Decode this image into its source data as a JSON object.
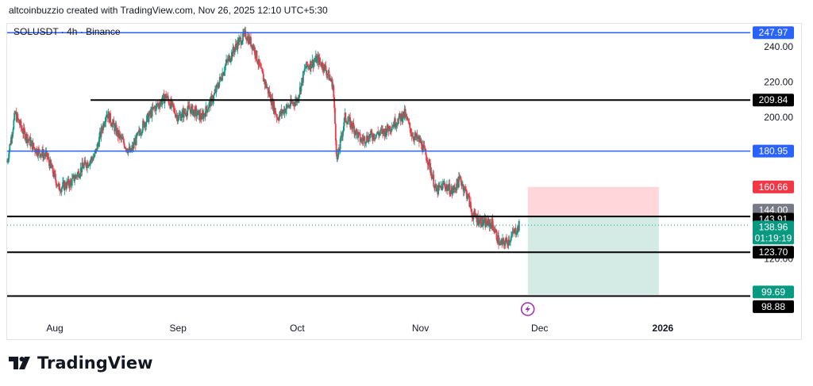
{
  "header": {
    "attribution": "altcoinbuzzio created with TradingView.com, Nov 26, 2025 12:10 UTC+5:30"
  },
  "branding": {
    "name": "TradingView",
    "logo_icon": "tradingview-logo-icon"
  },
  "colors": {
    "blue_line": "#2962ff",
    "black_line": "#000000",
    "up": "#089981",
    "down": "#f23645",
    "stop_zone": "#ffcdd2",
    "target_zone": "#c8e6dd",
    "last_price": "#089981",
    "lightning": "#9c27b0"
  },
  "chart_data": {
    "type": "candlestick",
    "symbol_label": "SOLUSDT · 4h · Binance",
    "ylim": [
      87,
      253
    ],
    "y_ticks": [
      "240.00",
      "220.00",
      "200.00",
      "120.00"
    ],
    "y_tick_values": [
      240,
      220,
      200,
      120
    ],
    "x_ticks": [
      "Aug",
      "Sep",
      "Oct",
      "Nov",
      "Dec",
      "2026"
    ],
    "x_tick_dates": [
      "2025-08-01",
      "2025-09-01",
      "2025-10-01",
      "2025-11-01",
      "2025-12-01",
      "2026-01-01"
    ],
    "x_range": [
      "2025-07-20",
      "2026-01-23"
    ],
    "price_path": [
      [
        "2025-07-20",
        175
      ],
      [
        "2025-07-22",
        202
      ],
      [
        "2025-07-24",
        192
      ],
      [
        "2025-07-27",
        182
      ],
      [
        "2025-07-30",
        178
      ],
      [
        "2025-08-02",
        160
      ],
      [
        "2025-08-05",
        163
      ],
      [
        "2025-08-08",
        172
      ],
      [
        "2025-08-11",
        178
      ],
      [
        "2025-08-14",
        203
      ],
      [
        "2025-08-17",
        190
      ],
      [
        "2025-08-20",
        180
      ],
      [
        "2025-08-23",
        195
      ],
      [
        "2025-08-26",
        205
      ],
      [
        "2025-08-29",
        212
      ],
      [
        "2025-09-01",
        200
      ],
      [
        "2025-09-04",
        205
      ],
      [
        "2025-09-07",
        200
      ],
      [
        "2025-09-10",
        212
      ],
      [
        "2025-09-13",
        230
      ],
      [
        "2025-09-16",
        242
      ],
      [
        "2025-09-18",
        247
      ],
      [
        "2025-09-20",
        240
      ],
      [
        "2025-09-22",
        225
      ],
      [
        "2025-09-24",
        213
      ],
      [
        "2025-09-26",
        200
      ],
      [
        "2025-09-28",
        205
      ],
      [
        "2025-10-01",
        210
      ],
      [
        "2025-10-03",
        228
      ],
      [
        "2025-10-06",
        233
      ],
      [
        "2025-10-08",
        228
      ],
      [
        "2025-10-10",
        218
      ],
      [
        "2025-10-11",
        175
      ],
      [
        "2025-10-13",
        200
      ],
      [
        "2025-10-15",
        195
      ],
      [
        "2025-10-17",
        187
      ],
      [
        "2025-10-20",
        190
      ],
      [
        "2025-10-23",
        192
      ],
      [
        "2025-10-26",
        198
      ],
      [
        "2025-10-28",
        202
      ],
      [
        "2025-10-30",
        190
      ],
      [
        "2025-11-01",
        186
      ],
      [
        "2025-11-03",
        175
      ],
      [
        "2025-11-05",
        158
      ],
      [
        "2025-11-07",
        162
      ],
      [
        "2025-11-09",
        158
      ],
      [
        "2025-11-11",
        165
      ],
      [
        "2025-11-13",
        155
      ],
      [
        "2025-11-14",
        145
      ],
      [
        "2025-11-17",
        140
      ],
      [
        "2025-11-19",
        140
      ],
      [
        "2025-11-21",
        128
      ],
      [
        "2025-11-23",
        130
      ],
      [
        "2025-11-26",
        138.96
      ]
    ],
    "levels": [
      {
        "label": "247.97",
        "value": 247.97,
        "color": "blue",
        "line_start": "2025-07-20"
      },
      {
        "label": "209.84",
        "value": 209.84,
        "color": "black",
        "line_start": "2025-08-10"
      },
      {
        "label": "180.95",
        "value": 180.95,
        "color": "blue",
        "line_start": "2025-07-20"
      },
      {
        "label": "143.91",
        "value": 143.91,
        "color": "black",
        "line_start": "2025-07-20"
      },
      {
        "label": "123.70",
        "value": 123.7,
        "color": "black",
        "line_start": "2025-07-20"
      },
      {
        "label": "98.88",
        "value": 98.88,
        "color": "black",
        "line_start": "2025-07-20"
      }
    ],
    "position": {
      "start": "2025-11-28",
      "end": "2025-12-31",
      "entry": 144.0,
      "entry_label": "144.00",
      "stop": 160.66,
      "stop_label": "160.66",
      "target": 99.69,
      "target_label": "99.69"
    },
    "last_price": {
      "value": 138.96,
      "label": "138.96",
      "countdown": "01:19:19"
    },
    "marker": {
      "date": "2025-11-28",
      "icon": "lightning-icon"
    }
  }
}
